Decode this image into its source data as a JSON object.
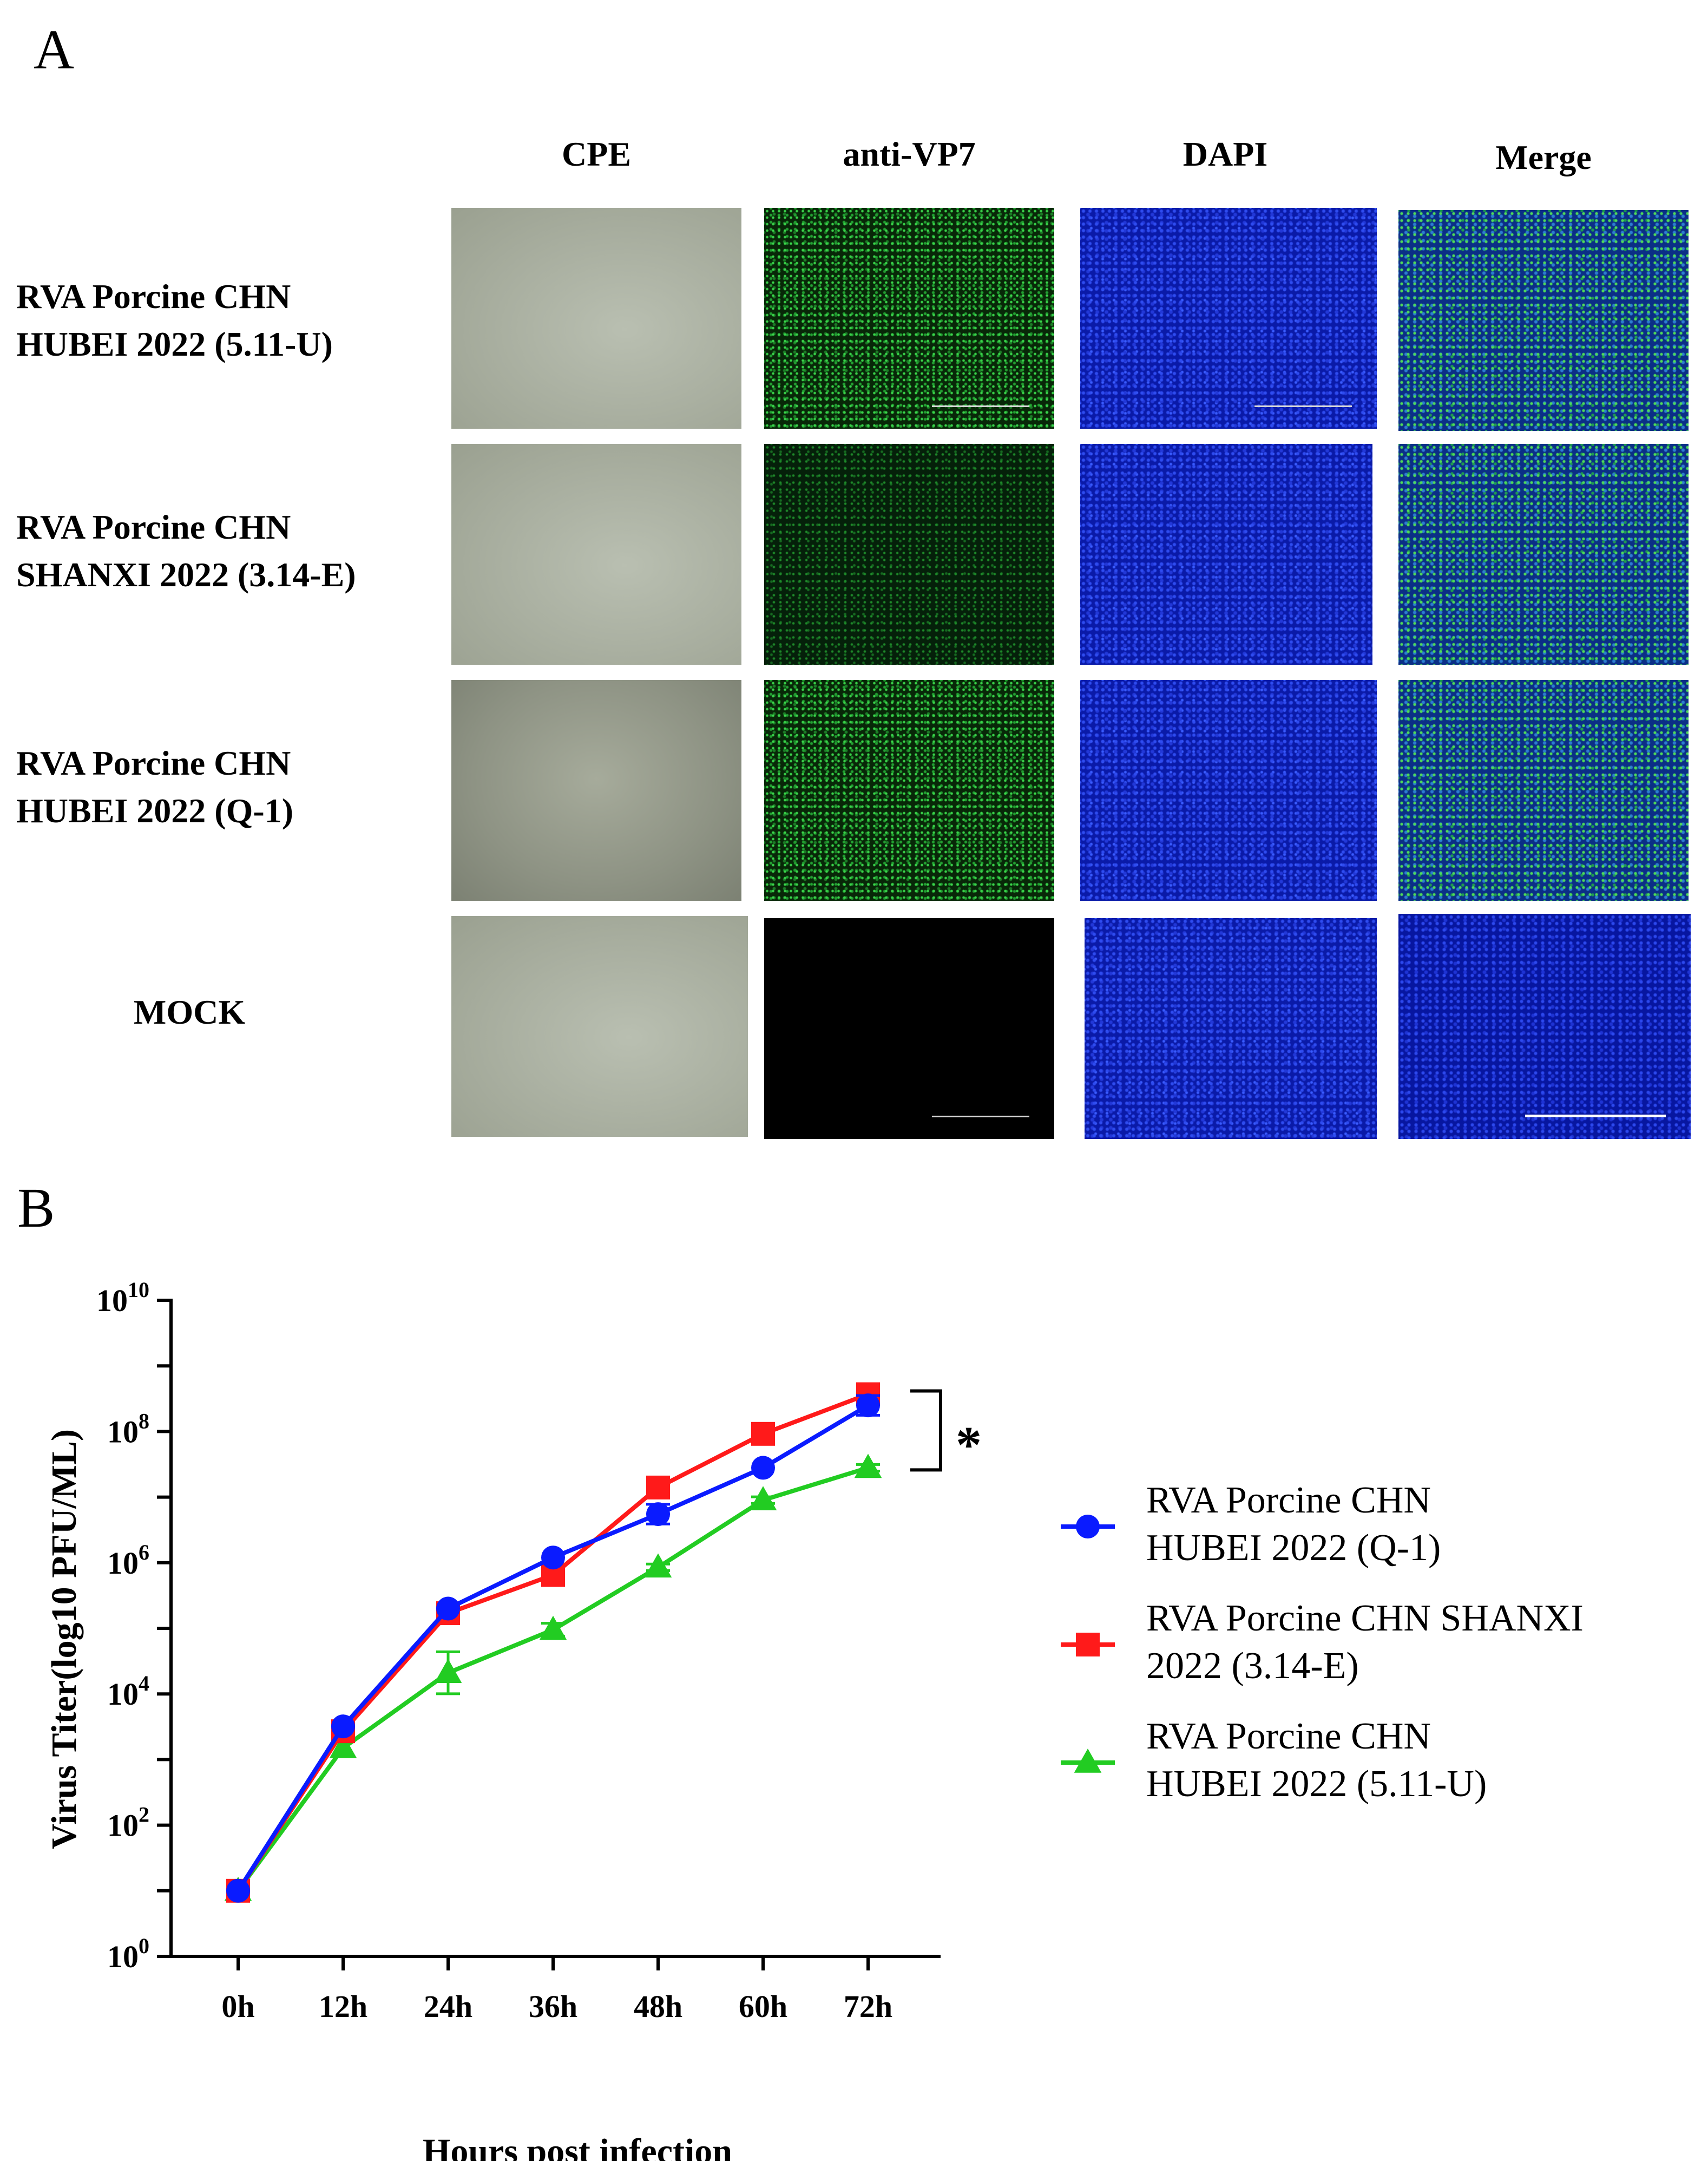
{
  "panel_a": {
    "letter": "A",
    "columns": [
      "CPE",
      "anti-VP7",
      "DAPI",
      "Merge"
    ],
    "rows": [
      {
        "label_lines": [
          "RVA Porcine CHN",
          "HUBEI 2022 (5.11-U)"
        ]
      },
      {
        "label_lines": [
          "RVA Porcine CHN",
          "SHANXI 2022 (3.14-E)"
        ]
      },
      {
        "label_lines": [
          "RVA Porcine CHN",
          "HUBEI 2022 (Q-1)"
        ]
      },
      {
        "label_lines": [
          "MOCK"
        ]
      }
    ]
  },
  "panel_b": {
    "letter": "B",
    "significance": "*"
  },
  "colors": {
    "blue": "#0a1bff",
    "red": "#ff1a1a",
    "green": "#22cc22"
  },
  "chart_data": {
    "type": "line",
    "xlabel": "Hours post infection",
    "ylabel": "Virus Titer(log10 PFU/ML)",
    "yscale": "log",
    "ylim": [
      1,
      10000000000
    ],
    "categories": [
      "0h",
      "12h",
      "24h",
      "36h",
      "48h",
      "60h",
      "72h"
    ],
    "yticks": [
      {
        "base": "10",
        "exp": "0",
        "value": 1
      },
      {
        "base": "10",
        "exp": "2",
        "value": 100
      },
      {
        "base": "10",
        "exp": "4",
        "value": 10000
      },
      {
        "base": "10",
        "exp": "6",
        "value": 1000000
      },
      {
        "base": "10",
        "exp": "8",
        "value": 100000000
      },
      {
        "base": "10",
        "exp": "10",
        "value": 10000000000
      }
    ],
    "series": [
      {
        "name_lines": [
          "RVA Porcine CHN",
          "HUBEI 2022 (Q-1)"
        ],
        "color": "#0a1bff",
        "marker": "circle",
        "values": [
          10,
          3200,
          200000,
          1200000,
          5500000,
          28000000,
          250000000
        ],
        "errors": [
          0,
          0,
          0,
          0,
          0.15,
          0,
          0.15
        ]
      },
      {
        "name_lines": [
          "RVA Porcine CHN SHANXI",
          "2022 (3.14-E)"
        ],
        "color": "#ff1a1a",
        "marker": "square",
        "values": [
          10,
          2700,
          170000,
          650000,
          14000000,
          92000000,
          370000000
        ],
        "errors": [
          0,
          0,
          0,
          0,
          0,
          0,
          0
        ]
      },
      {
        "name_lines": [
          "RVA Porcine CHN",
          "HUBEI 2022 (5.11-U)"
        ],
        "color": "#22cc22",
        "marker": "triangle",
        "values": [
          10,
          1500,
          21000,
          95000,
          850000,
          9000000,
          28000000
        ],
        "errors": [
          0,
          0,
          0.32,
          0.1,
          0.05,
          0.05,
          0.05
        ]
      }
    ]
  }
}
